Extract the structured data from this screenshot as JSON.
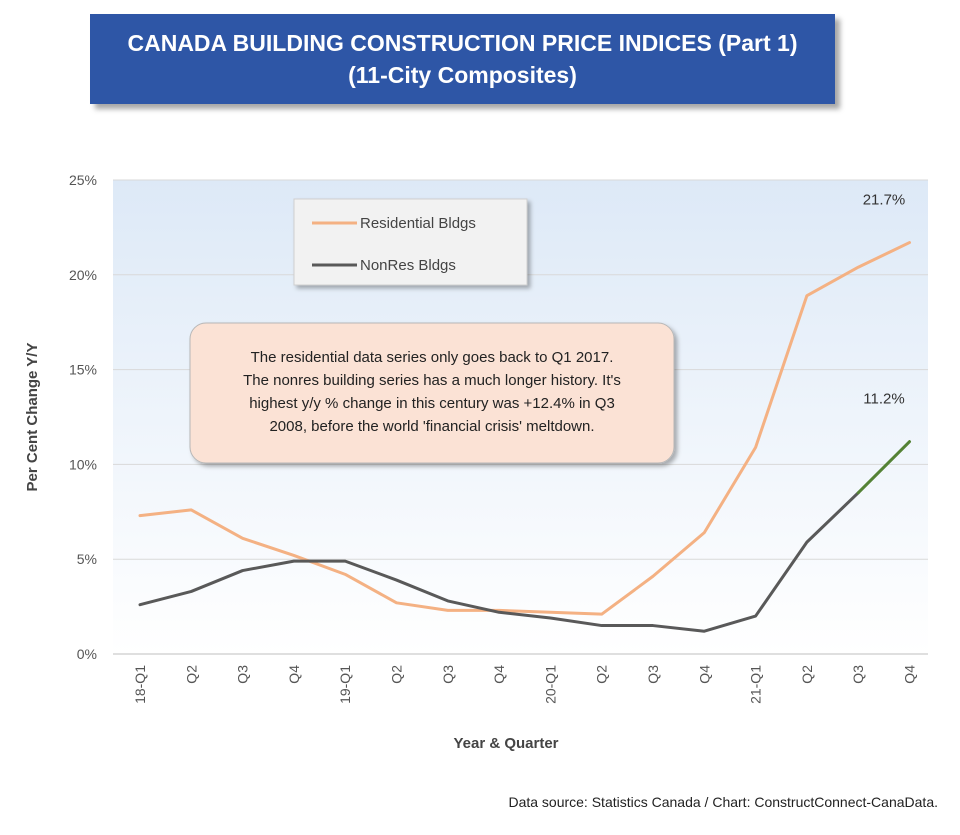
{
  "title": {
    "line1": "CANADA BUILDING CONSTRUCTION PRICE INDICES (Part 1)",
    "line2": "(11-City Composites)"
  },
  "source": "Data source: Statistics Canada / Chart: ConstructConnect-CanaData.",
  "colors": {
    "residential": "#f4b183",
    "nonres": "#595959",
    "nonres_last": "#548235",
    "plot_top": "#dde9f7",
    "plot_bottom": "#ffffff",
    "callout_fill": "#fbe2d5"
  },
  "chart_data": {
    "type": "line",
    "xlabel": "Year & Quarter",
    "ylabel": "Per Cent Change Y/Y",
    "ylim": [
      0,
      25
    ],
    "yticks": [
      "0%",
      "5%",
      "10%",
      "15%",
      "20%",
      "25%"
    ],
    "grid": true,
    "legend_position": "top-left",
    "categories": [
      "18-Q1",
      "Q2",
      "Q3",
      "Q4",
      "19-Q1",
      "Q2",
      "Q3",
      "Q4",
      "20-Q1",
      "Q2",
      "Q3",
      "Q4",
      "21-Q1",
      "Q2",
      "Q3",
      "Q4"
    ],
    "series": [
      {
        "name": "Residential Bldgs",
        "values": [
          7.3,
          7.6,
          6.1,
          5.2,
          4.2,
          2.7,
          2.3,
          2.3,
          2.2,
          2.1,
          4.1,
          6.4,
          10.9,
          18.9,
          20.4,
          21.7
        ]
      },
      {
        "name": "NonRes Bldgs",
        "values": [
          2.6,
          3.3,
          4.4,
          4.9,
          4.9,
          3.9,
          2.8,
          2.2,
          1.9,
          1.5,
          1.5,
          1.2,
          2.0,
          5.9,
          8.5,
          11.2
        ]
      }
    ],
    "end_labels": [
      "21.7%",
      "11.2%"
    ],
    "callout": [
      "The residential data series only goes back to Q1 2017.",
      "The nonres building series has a much longer history. It's",
      "highest y/y % change in this century was +12.4% in Q3",
      "2008, before the world 'financial crisis' meltdown."
    ]
  }
}
